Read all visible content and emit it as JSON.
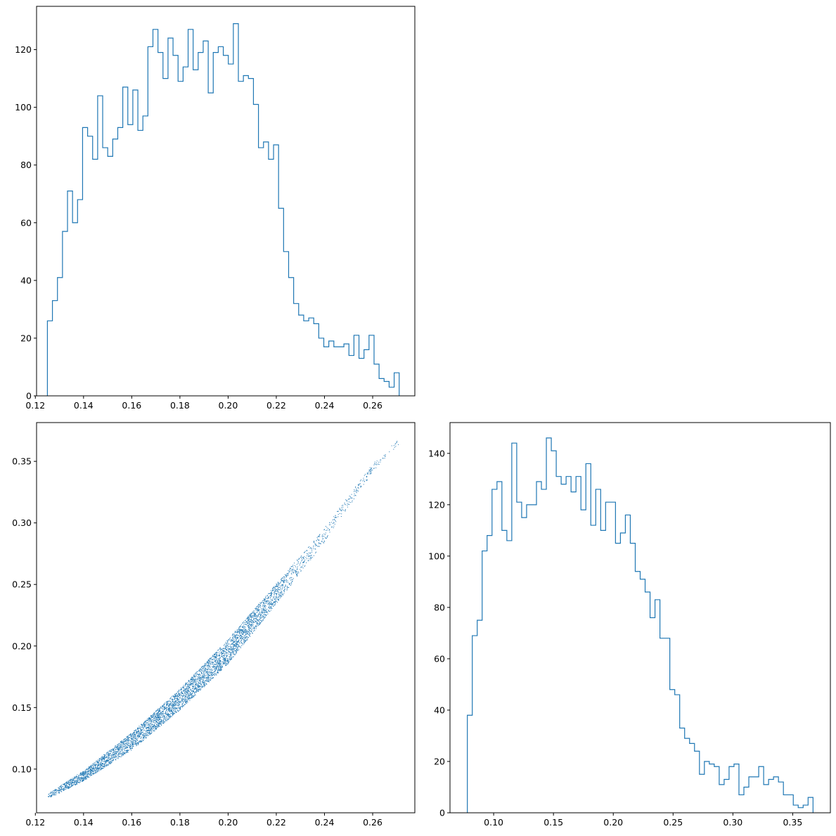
{
  "chart_data": [
    {
      "type": "histogram",
      "panel": "top-left",
      "title": "",
      "xlabel": "",
      "ylabel": "",
      "xlim": [
        0.1205,
        0.2775
      ],
      "ylim": [
        0,
        135
      ],
      "xticks": [
        0.12,
        0.14,
        0.16,
        0.18,
        0.2,
        0.22,
        0.24,
        0.26
      ],
      "xticklabels": [
        "0.12",
        "0.14",
        "0.16",
        "0.18",
        "0.20",
        "0.22",
        "0.24",
        "0.26"
      ],
      "yticks": [
        0,
        20,
        40,
        60,
        80,
        100,
        120
      ],
      "yticklabels": [
        "0",
        "20",
        "40",
        "60",
        "80",
        "100",
        "120"
      ],
      "bin_range": [
        0.125,
        0.271
      ],
      "counts": [
        26,
        33,
        41,
        57,
        71,
        60,
        68,
        93,
        90,
        82,
        104,
        86,
        83,
        89,
        93,
        107,
        94,
        106,
        92,
        97,
        121,
        127,
        119,
        110,
        124,
        118,
        109,
        114,
        127,
        113,
        119,
        123,
        105,
        119,
        121,
        118,
        115,
        129,
        109,
        111,
        110,
        101,
        86,
        88,
        82,
        87,
        65,
        50,
        41,
        32,
        28,
        26,
        27,
        25,
        20,
        17,
        19,
        17,
        17,
        18,
        14,
        21,
        13,
        16,
        21,
        11,
        6,
        5,
        3,
        8
      ]
    },
    {
      "type": "scatter",
      "panel": "bottom-left",
      "title": "",
      "xlabel": "",
      "ylabel": "",
      "xlim": [
        0.1205,
        0.2775
      ],
      "ylim": [
        0.0645,
        0.3815
      ],
      "xticks": [
        0.12,
        0.14,
        0.16,
        0.18,
        0.2,
        0.22,
        0.24,
        0.26
      ],
      "xticklabels": [
        "0.12",
        "0.14",
        "0.16",
        "0.18",
        "0.20",
        "0.22",
        "0.24",
        "0.26"
      ],
      "yticks": [
        0.1,
        0.15,
        0.2,
        0.25,
        0.3,
        0.35
      ],
      "yticklabels": [
        "0.10",
        "0.15",
        "0.20",
        "0.25",
        "0.30",
        "0.35"
      ],
      "points_approx": {
        "n": 5000,
        "x_range": [
          0.125,
          0.271
        ],
        "curve": [
          [
            0.125,
            0.078
          ],
          [
            0.14,
            0.095
          ],
          [
            0.16,
            0.123
          ],
          [
            0.18,
            0.157
          ],
          [
            0.2,
            0.196
          ],
          [
            0.22,
            0.243
          ],
          [
            0.24,
            0.291
          ],
          [
            0.26,
            0.345
          ],
          [
            0.271,
            0.367
          ]
        ],
        "band_halfwidth": [
          [
            0.125,
            0.002
          ],
          [
            0.16,
            0.007
          ],
          [
            0.2,
            0.01
          ],
          [
            0.24,
            0.006
          ],
          [
            0.271,
            0.002
          ]
        ]
      }
    },
    {
      "type": "histogram",
      "panel": "bottom-right",
      "title": "",
      "xlabel": "",
      "ylabel": "",
      "xlim": [
        0.0635,
        0.3815
      ],
      "ylim": [
        0,
        152
      ],
      "xticks": [
        0.1,
        0.15,
        0.2,
        0.25,
        0.3,
        0.35
      ],
      "xticklabels": [
        "0.10",
        "0.15",
        "0.20",
        "0.25",
        "0.30",
        "0.35"
      ],
      "yticks": [
        0,
        20,
        40,
        60,
        80,
        100,
        120,
        140
      ],
      "yticklabels": [
        "0",
        "20",
        "40",
        "60",
        "80",
        "100",
        "120",
        "140"
      ],
      "bin_range": [
        0.078,
        0.367
      ],
      "counts": [
        38,
        69,
        75,
        102,
        108,
        126,
        129,
        110,
        106,
        144,
        121,
        115,
        120,
        120,
        129,
        126,
        146,
        141,
        131,
        128,
        131,
        125,
        131,
        118,
        136,
        112,
        126,
        110,
        121,
        121,
        105,
        109,
        116,
        105,
        94,
        91,
        86,
        76,
        83,
        68,
        68,
        48,
        46,
        33,
        29,
        27,
        24,
        15,
        20,
        19,
        18,
        11,
        13,
        18,
        19,
        7,
        10,
        14,
        14,
        18,
        11,
        13,
        14,
        12,
        7,
        7,
        3,
        2,
        3,
        6
      ]
    }
  ]
}
